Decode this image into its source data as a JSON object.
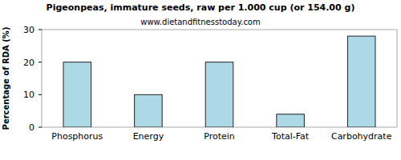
{
  "chart_data": {
    "type": "bar",
    "title": "Pigeonpeas, immature seeds, raw per 1.000 cup (or 154.00 g)",
    "subtitle": "www.dietandfitnesstoday.com",
    "y_label": "Percentage of RDA (%)",
    "categories": [
      "Phosphorus",
      "Energy",
      "Protein",
      "Total-Fat",
      "Carbohydrate"
    ],
    "values": [
      20,
      10,
      20,
      4,
      28
    ],
    "color": "#add8e6",
    "ylim": [
      0,
      30
    ],
    "yticks": [
      0,
      10,
      20,
      30
    ],
    "grid": false
  }
}
